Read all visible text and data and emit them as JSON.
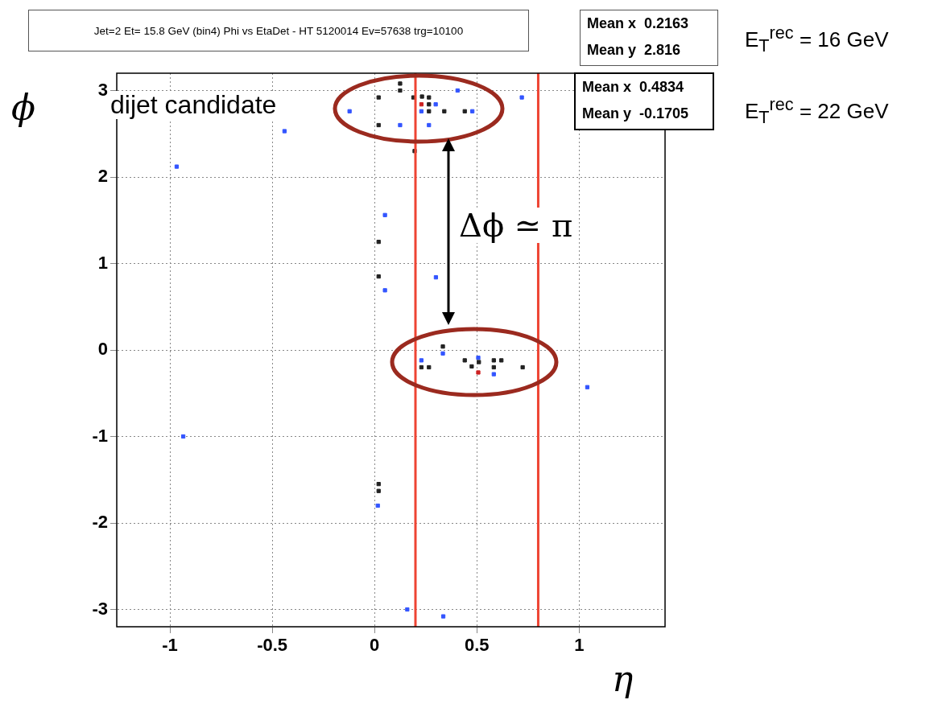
{
  "chart_data": {
    "type": "scatter",
    "title": "Jet=2 Et= 15.8 GeV (bin4) Phi vs EtaDet - HT 5120014 Ev=57638 trg=10100",
    "xlabel": "η",
    "ylabel": "ϕ",
    "xlim": [
      -1.26,
      1.42
    ],
    "ylim": [
      -3.2,
      3.2
    ],
    "xticks": [
      -1,
      -0.5,
      0,
      0.5,
      1
    ],
    "yticks": [
      -3,
      -2,
      -1,
      0,
      1,
      2,
      3
    ],
    "grid": true,
    "legend": false,
    "marker": "square",
    "series": [
      {
        "color": "#222222",
        "x": [
          0.125,
          0.125,
          0.02,
          0.19,
          0.232,
          0.266,
          0.266,
          0.266,
          0.341,
          0.441,
          0.02,
          0.196,
          0.02,
          0.02,
          0.02,
          0.02,
          0.334,
          0.229,
          0.266,
          0.441,
          0.51,
          0.583,
          0.583,
          0.62,
          0.724,
          0.475
        ],
        "values": [
          3.0,
          3.08,
          2.92,
          2.92,
          2.93,
          2.92,
          2.84,
          2.76,
          2.76,
          2.76,
          2.6,
          2.3,
          1.25,
          0.85,
          -1.55,
          -1.63,
          0.04,
          -0.2,
          -0.2,
          -0.12,
          -0.14,
          -0.2,
          -0.12,
          -0.12,
          -0.2,
          -0.19
        ]
      },
      {
        "color": "#3355ff",
        "x": [
          0.406,
          0.72,
          0.299,
          -0.122,
          0.229,
          0.478,
          0.125,
          0.266,
          -0.44,
          -0.967,
          0.051,
          0.3,
          0.051,
          1.04,
          -0.935,
          0.016,
          0.16,
          0.336,
          0.334,
          0.229,
          0.507,
          0.583
        ],
        "values": [
          3.0,
          2.92,
          2.84,
          2.76,
          2.76,
          2.76,
          2.6,
          2.6,
          2.53,
          2.12,
          1.56,
          0.84,
          0.69,
          -0.43,
          -1.0,
          -1.8,
          -3.0,
          -3.08,
          -0.04,
          -0.12,
          -0.09,
          -0.28
        ]
      },
      {
        "color": "#cc2222",
        "x": [
          0.229,
          0.507
        ],
        "values": [
          2.84,
          -0.26
        ]
      }
    ],
    "ref_lines": [
      {
        "axis": "x",
        "value": 0.2,
        "color": "#ee4433"
      },
      {
        "axis": "x",
        "value": 0.8,
        "color": "#ee4433"
      }
    ],
    "annotations": [
      "Mean x  0.2163",
      "Mean y  2.816",
      "Mean x  0.4834",
      "Mean y  -0.1705",
      "E$_{T}$$^{rec}$ = 16 GeV",
      "E$_{T}$$^{rec}$ = 22 GeV",
      "dijet candidate",
      "Δϕ ≃ π"
    ]
  }
}
